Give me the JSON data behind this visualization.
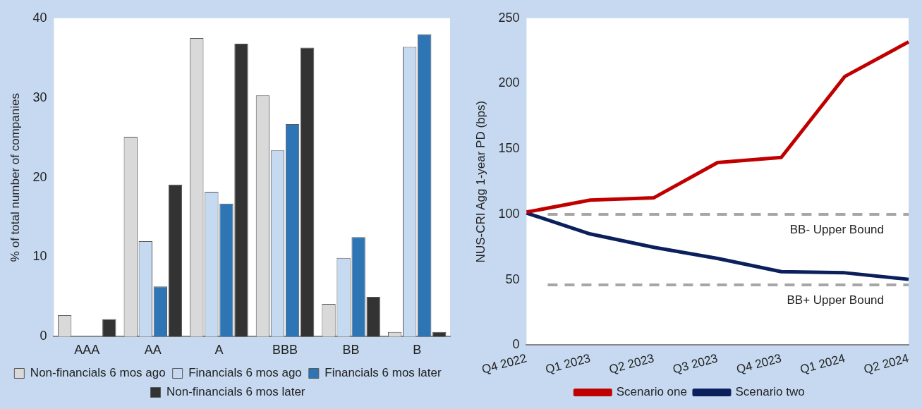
{
  "chart_data": [
    {
      "type": "bar",
      "ylabel": "% of total number of companies",
      "categories": [
        "AAA",
        "AA",
        "A",
        "BBB",
        "BB",
        "B"
      ],
      "ylim": [
        0,
        40
      ],
      "yticks": [
        0,
        10,
        20,
        30,
        40
      ],
      "legend": "bottom",
      "series": [
        {
          "name": "Non-financials 6 mos ago",
          "color": "#d9d9d9",
          "values": [
            2.7,
            25.1,
            37.5,
            30.3,
            4.1,
            0.6
          ]
        },
        {
          "name": "Financials 6 mos ago",
          "color": "#c5d9f1",
          "values": [
            0,
            12.0,
            18.2,
            23.4,
            9.9,
            36.4
          ]
        },
        {
          "name": "Financials 6 mos later",
          "color": "#2e75b6",
          "values": [
            0,
            6.3,
            16.7,
            26.7,
            12.5,
            38.0
          ]
        },
        {
          "name": "Non-financials 6 mos later",
          "color": "#333333",
          "values": [
            2.2,
            19.1,
            36.8,
            36.3,
            5.0,
            0.6
          ]
        }
      ]
    },
    {
      "type": "line",
      "ylabel": "NUS-CRI Agg 1-year PD (bps)",
      "categories": [
        "Q4 2022",
        "Q1 2023",
        "Q2 2023",
        "Q3 2023",
        "Q4 2023",
        "Q1 2024",
        "Q2 2024"
      ],
      "ylim": [
        0,
        250
      ],
      "yticks": [
        0,
        50,
        100,
        150,
        200,
        250
      ],
      "legend": "bottom",
      "marker": "none",
      "series": [
        {
          "name": "Scenario one",
          "color": "#c00000",
          "values": [
            101.7,
            110.9,
            112.7,
            139.6,
            143.5,
            205.5,
            231.9
          ]
        },
        {
          "name": "Scenario two",
          "color": "#0a1f5c",
          "values": [
            101,
            85,
            74.8,
            66.3,
            56.2,
            55.3,
            50.3
          ]
        }
      ],
      "ref_lines": [
        {
          "axis": "y",
          "value": 100,
          "label": "BB- Upper Bound",
          "color": "#a6a6a6",
          "line_style": "dashed"
        },
        {
          "axis": "y",
          "value": 46,
          "label": "BB+ Upper Bound",
          "color": "#a6a6a6",
          "line_style": "dashed"
        }
      ]
    }
  ]
}
